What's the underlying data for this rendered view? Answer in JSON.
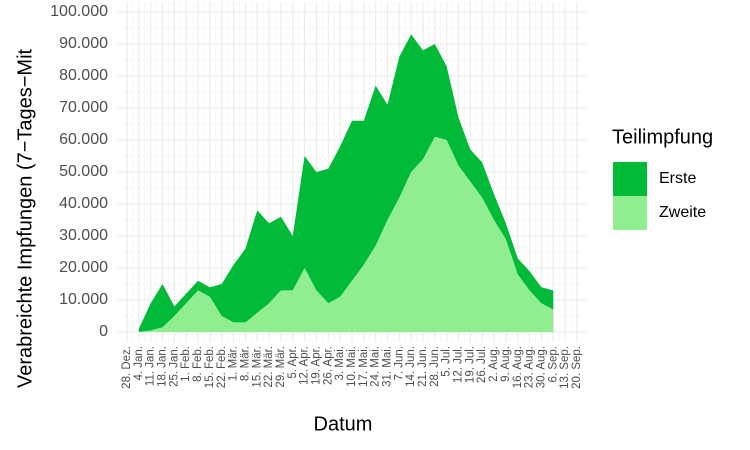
{
  "chart_data": {
    "type": "area",
    "stacked": true,
    "x_label": "Datum",
    "y_label": "Verabreichte Impfungen (7−Tages−Mit",
    "legend_title": "Teilimpfung",
    "categories": [
      "28. Dez.",
      "4. Jan.",
      "11. Jan.",
      "18. Jan.",
      "25. Jan.",
      "1. Feb.",
      "8. Feb.",
      "15. Feb.",
      "22. Feb.",
      "1. Mär.",
      "8. Mär.",
      "15. Mär.",
      "22. Mär.",
      "29. Mär.",
      "5. Apr.",
      "12. Apr.",
      "19. Apr.",
      "26. Apr.",
      "3. Mai.",
      "10. Mai.",
      "17. Mai.",
      "24. Mai.",
      "31. Mai.",
      "7. Jun.",
      "14. Jun.",
      "21. Jun.",
      "28. Jun.",
      "5. Jul.",
      "12. Jul.",
      "19. Jul.",
      "26. Jul.",
      "2. Aug.",
      "9. Aug.",
      "16. Aug.",
      "23. Aug.",
      "30. Aug.",
      "6. Sep.",
      "13. Sep.",
      "20. Sep."
    ],
    "series": [
      {
        "name": "Zweite",
        "color": "#90ee90",
        "values": [
          null,
          0,
          500,
          1500,
          5000,
          9000,
          13000,
          11000,
          5000,
          3000,
          3000,
          6000,
          9000,
          13000,
          13000,
          20000,
          13000,
          9000,
          11000,
          16000,
          21000,
          27000,
          35000,
          42000,
          50000,
          54000,
          61000,
          60000,
          52000,
          47000,
          42000,
          35000,
          29000,
          18000,
          13000,
          9000,
          7000,
          null,
          null
        ]
      },
      {
        "name": "Erste",
        "color": "#00ba38",
        "values": [
          null,
          1000,
          8500,
          13500,
          3000,
          3000,
          3000,
          3000,
          10000,
          18000,
          23000,
          32000,
          25000,
          23000,
          17000,
          35000,
          37000,
          42000,
          47000,
          50000,
          45000,
          50000,
          36000,
          44000,
          43000,
          34000,
          29000,
          23000,
          15000,
          10000,
          11000,
          8000,
          5000,
          5000,
          6000,
          5000,
          6000,
          null,
          null
        ]
      }
    ],
    "ylim": [
      0,
      100000
    ],
    "yticks": [
      0,
      {
        "value": 10000,
        "label": "10.000"
      },
      {
        "value": 20000,
        "label": "20.000"
      },
      {
        "value": 30000,
        "label": "30.000"
      },
      {
        "value": 40000,
        "label": "40.000"
      },
      {
        "value": 50000,
        "label": "50.000"
      },
      {
        "value": 60000,
        "label": "60.000"
      },
      {
        "value": 70000,
        "label": "70.000"
      },
      {
        "value": 80000,
        "label": "80.000"
      },
      {
        "value": 90000,
        "label": "90.000"
      },
      {
        "value": 100000,
        "label": "100.000"
      }
    ],
    "grid": true
  }
}
